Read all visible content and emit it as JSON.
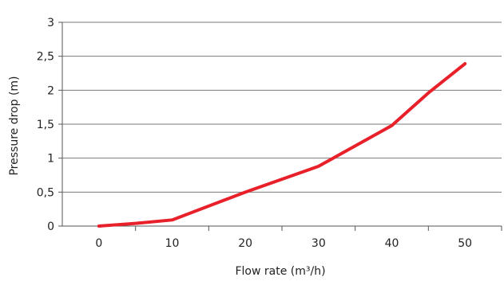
{
  "chart_data": {
    "type": "line",
    "xlabel": "Flow rate (m³/h)",
    "ylabel": "Pressure drop (m)",
    "x_ticks": [
      "0",
      "10",
      "20",
      "30",
      "40",
      "50"
    ],
    "y_ticks": [
      "0",
      "0,5",
      "1",
      "1,5",
      "2",
      "2,5",
      "3"
    ],
    "xlim": [
      -5,
      55
    ],
    "ylim": [
      0,
      3
    ],
    "grid": "horizontal",
    "series": [
      {
        "color": "#e8202a",
        "x": [
          0,
          5,
          10,
          20,
          30,
          40,
          45,
          50
        ],
        "y": [
          0.0,
          0.04,
          0.09,
          0.5,
          0.88,
          1.48,
          1.96,
          2.39
        ]
      }
    ]
  }
}
